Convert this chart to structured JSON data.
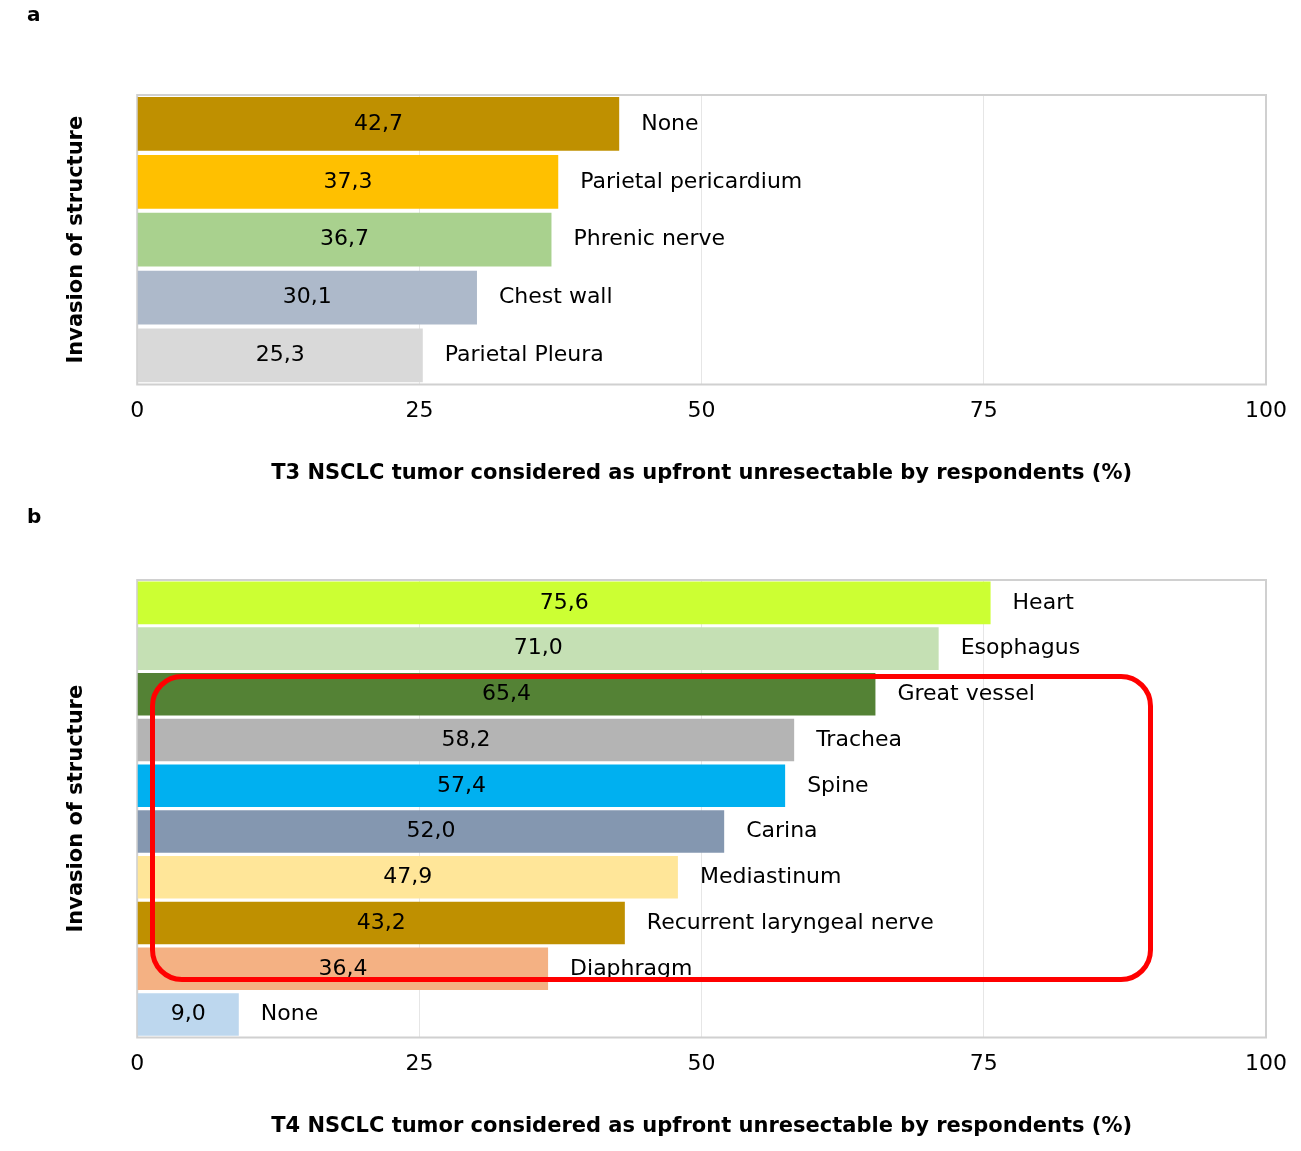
{
  "chart_data": [
    {
      "type": "bar",
      "title": "a",
      "orientation": "horizontal",
      "categories": [
        "None",
        "Parietal pericardium",
        "Phrenic nerve",
        "Chest wall",
        "Parietal Pleura"
      ],
      "values": [
        42.7,
        37.3,
        36.7,
        30.1,
        25.3
      ],
      "colors": [
        "#bf9000",
        "#ffc000",
        "#a9d18e",
        "#adb9ca",
        "#d9d9d9"
      ],
      "value_labels": [
        "42,7",
        "37,3",
        "36,7",
        "30,1",
        "25,3"
      ],
      "xlim": [
        0,
        100
      ],
      "xticks": [
        0,
        25,
        50,
        75,
        100
      ],
      "grid": "x",
      "tick_labels": "x",
      "xlabel": "T3 NSCLC tumor considered as upfront unresectable by respondents (%)",
      "ylabel": "Invasion of structure"
    },
    {
      "type": "bar",
      "title": "b",
      "orientation": "horizontal",
      "categories": [
        "Heart",
        "Esophagus",
        "Great vessel",
        "Trachea",
        "Spine",
        "Carina",
        "Mediastinum",
        "Recurrent laryngeal nerve",
        "Diaphragm",
        "None"
      ],
      "values": [
        75.6,
        71.0,
        65.4,
        58.2,
        57.4,
        52.0,
        47.9,
        43.2,
        36.4,
        9.0
      ],
      "colors": [
        "#ccff33",
        "#c5e0b4",
        "#548235",
        "#b4b4b4",
        "#00b0f0",
        "#8497b0",
        "#ffe699",
        "#bf9000",
        "#f4b183",
        "#bdd7ee"
      ],
      "value_labels": [
        "75,6",
        "71,0",
        "65,4",
        "58,2",
        "57,4",
        "52,0",
        "47,9",
        "43,2",
        "36,4",
        "9,0"
      ],
      "xlim": [
        0,
        100
      ],
      "xticks": [
        0,
        25,
        50,
        75,
        100
      ],
      "grid": "x",
      "tick_labels": "x",
      "xlabel": "T4 NSCLC tumor considered as upfront unresectable by respondents (%)",
      "ylabel": "Invasion of structure"
    }
  ]
}
